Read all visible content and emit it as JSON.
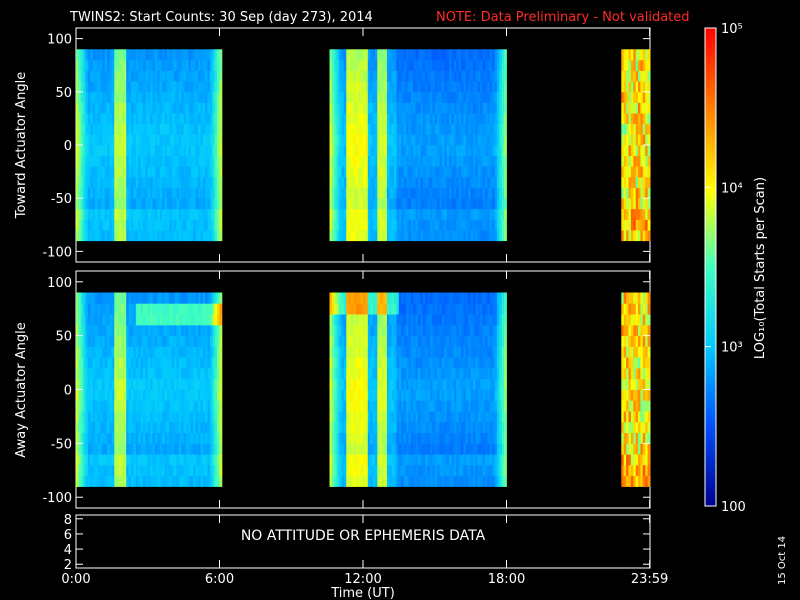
{
  "header": {
    "title": "TWINS2: Start Counts: 30 Sep (day 273), 2014",
    "note": "NOTE: Data Preliminary - Not validated",
    "note_color": "#ff2a2a"
  },
  "chart_data": [
    {
      "type": "heatmap",
      "panel": "toward",
      "ylabel": "Toward Actuator Angle",
      "ylim": [
        -110,
        110
      ],
      "yticks": [
        100,
        50,
        0,
        -50,
        -100
      ],
      "data_coverage_hours": [
        [
          0.0,
          6.1
        ],
        [
          10.6,
          18.0
        ],
        [
          22.8,
          24.0
        ]
      ],
      "angle_range": [
        -90,
        90
      ]
    },
    {
      "type": "heatmap",
      "panel": "away",
      "ylabel": "Away Actuator Angle",
      "ylim": [
        -110,
        110
      ],
      "yticks": [
        100,
        50,
        0,
        -50,
        -100
      ],
      "data_coverage_hours": [
        [
          0.0,
          6.1
        ],
        [
          10.6,
          18.0
        ],
        [
          22.8,
          24.0
        ]
      ],
      "angle_range": [
        -90,
        90
      ]
    },
    {
      "type": "line",
      "panel": "ephemeris",
      "ylim": [
        1.5,
        8.5
      ],
      "yticks": [
        8,
        6,
        4,
        2
      ],
      "message": "NO ATTITUDE OR EPHEMERIS DATA"
    }
  ],
  "x_axis": {
    "xlabel": "Time (UT)",
    "xlim_hours": [
      0,
      24
    ],
    "ticks": [
      {
        "hour": 0,
        "label": "0:00"
      },
      {
        "hour": 6,
        "label": "6:00"
      },
      {
        "hour": 12,
        "label": "12:00"
      },
      {
        "hour": 18,
        "label": "18:00"
      },
      {
        "hour": 23.983,
        "label": "23:59"
      }
    ]
  },
  "colorbar": {
    "label": "LOG₁₀(Total Starts per Scan)",
    "min_exp": 2,
    "max_exp": 5,
    "ticks": [
      {
        "exp": 5,
        "label": "10⁵"
      },
      {
        "exp": 4,
        "label": "10⁴"
      },
      {
        "exp": 3,
        "label": "10³"
      },
      {
        "exp": 2,
        "label": "100"
      }
    ],
    "colors": [
      "#00008c",
      "#0050ff",
      "#00c8ff",
      "#40ffc0",
      "#ffff00",
      "#ff8000",
      "#ff0000"
    ]
  },
  "footer": {
    "date_stamp": "15 Oct 14"
  }
}
